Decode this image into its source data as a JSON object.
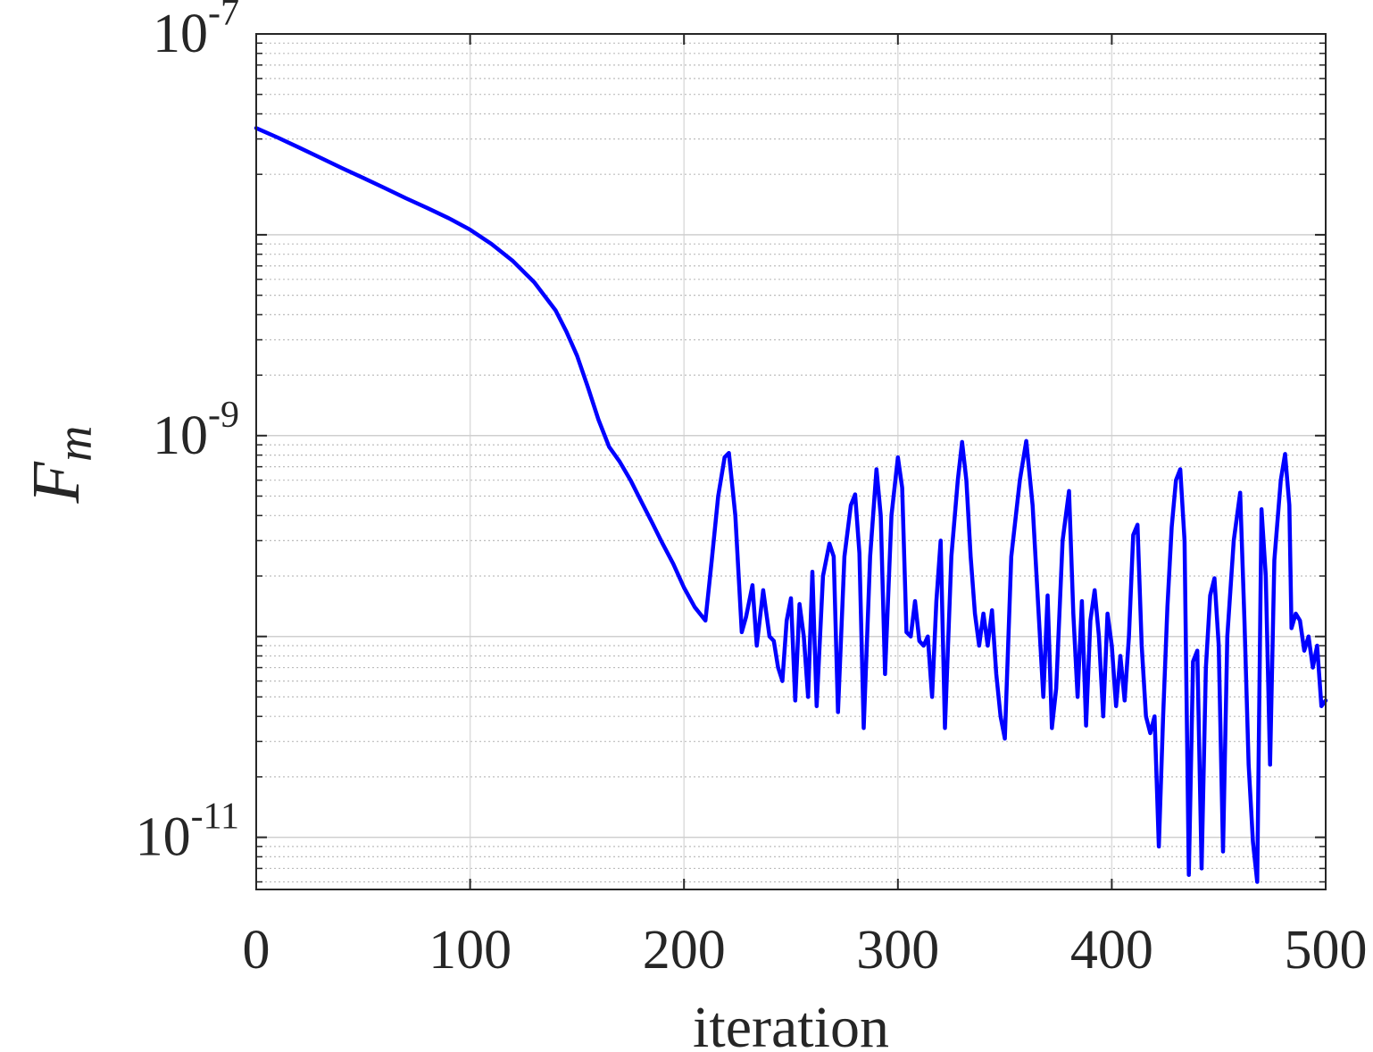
{
  "chart_data": {
    "type": "line",
    "title": "",
    "xlabel": "iteration",
    "ylabel": "F",
    "ylabel_subscript": "m",
    "xlim": [
      0,
      500
    ],
    "ylim": [
      5.5e-12,
      1e-07
    ],
    "yscale": "log",
    "grid": true,
    "x_ticks": [
      0,
      100,
      200,
      300,
      400,
      500
    ],
    "x_tick_labels": [
      "0",
      "100",
      "200",
      "300",
      "400",
      "500"
    ],
    "y_ticks": [
      1e-11,
      1e-09,
      1e-07
    ],
    "y_tick_labels": [
      {
        "base": "10",
        "exp": "-11"
      },
      {
        "base": "10",
        "exp": "-9"
      },
      {
        "base": "10",
        "exp": "-7"
      }
    ],
    "series": [
      {
        "color": "#0000ff",
        "points": [
          [
            0,
            3.4e-08
          ],
          [
            10,
            3.05e-08
          ],
          [
            20,
            2.72e-08
          ],
          [
            30,
            2.42e-08
          ],
          [
            40,
            2.15e-08
          ],
          [
            50,
            1.92e-08
          ],
          [
            60,
            1.71e-08
          ],
          [
            70,
            1.52e-08
          ],
          [
            80,
            1.36e-08
          ],
          [
            90,
            1.21e-08
          ],
          [
            100,
            1.06e-08
          ],
          [
            110,
            9e-09
          ],
          [
            120,
            7.4e-09
          ],
          [
            130,
            5.8e-09
          ],
          [
            140,
            4.2e-09
          ],
          [
            145,
            3.3e-09
          ],
          [
            150,
            2.5e-09
          ],
          [
            155,
            1.75e-09
          ],
          [
            160,
            1.2e-09
          ],
          [
            165,
            8.8e-10
          ],
          [
            170,
            7.4e-10
          ],
          [
            175,
            6e-10
          ],
          [
            180,
            4.7e-10
          ],
          [
            185,
            3.7e-10
          ],
          [
            190,
            2.9e-10
          ],
          [
            195,
            2.3e-10
          ],
          [
            200,
            1.75e-10
          ],
          [
            205,
            1.4e-10
          ],
          [
            210,
            1.2e-10
          ],
          [
            213,
            2.4e-10
          ],
          [
            216,
            5e-10
          ],
          [
            219,
            7.8e-10
          ],
          [
            221,
            8.2e-10
          ],
          [
            224,
            4e-10
          ],
          [
            227,
            1.05e-10
          ],
          [
            229,
            1.25e-10
          ],
          [
            232,
            1.8e-10
          ],
          [
            234,
            9e-11
          ],
          [
            237,
            1.7e-10
          ],
          [
            240,
            1e-10
          ],
          [
            242,
            9.5e-11
          ],
          [
            244,
            7e-11
          ],
          [
            246,
            6e-11
          ],
          [
            248,
            1.2e-10
          ],
          [
            250,
            1.55e-10
          ],
          [
            252,
            4.8e-11
          ],
          [
            254,
            1.45e-10
          ],
          [
            256,
            1e-10
          ],
          [
            258,
            5e-11
          ],
          [
            260,
            2.1e-10
          ],
          [
            262,
            4.5e-11
          ],
          [
            265,
            2e-10
          ],
          [
            268,
            2.9e-10
          ],
          [
            270,
            2.5e-10
          ],
          [
            272,
            4.2e-11
          ],
          [
            275,
            2.5e-10
          ],
          [
            278,
            4.5e-10
          ],
          [
            280,
            5.1e-10
          ],
          [
            282,
            2.6e-10
          ],
          [
            284,
            3.5e-11
          ],
          [
            287,
            2.5e-10
          ],
          [
            290,
            6.8e-10
          ],
          [
            292,
            4e-10
          ],
          [
            294,
            6.5e-11
          ],
          [
            297,
            4e-10
          ],
          [
            300,
            7.8e-10
          ],
          [
            302,
            5.5e-10
          ],
          [
            304,
            1.05e-10
          ],
          [
            306,
            1e-10
          ],
          [
            308,
            1.5e-10
          ],
          [
            310,
            9.5e-11
          ],
          [
            312,
            9e-11
          ],
          [
            314,
            1e-10
          ],
          [
            316,
            5e-11
          ],
          [
            318,
            1.5e-10
          ],
          [
            320,
            3e-10
          ],
          [
            322,
            3.5e-11
          ],
          [
            325,
            2.5e-10
          ],
          [
            328,
            6e-10
          ],
          [
            330,
            9.3e-10
          ],
          [
            332,
            6e-10
          ],
          [
            334,
            2.5e-10
          ],
          [
            336,
            1.3e-10
          ],
          [
            338,
            9e-11
          ],
          [
            340,
            1.3e-10
          ],
          [
            342,
            9e-11
          ],
          [
            344,
            1.35e-10
          ],
          [
            346,
            6.5e-11
          ],
          [
            348,
            4e-11
          ],
          [
            350,
            3.1e-11
          ],
          [
            353,
            2.5e-10
          ],
          [
            357,
            6e-10
          ],
          [
            360,
            9.4e-10
          ],
          [
            363,
            4.5e-10
          ],
          [
            366,
            1.2e-10
          ],
          [
            368,
            5e-11
          ],
          [
            370,
            1.6e-10
          ],
          [
            372,
            3.5e-11
          ],
          [
            374,
            5.5e-11
          ],
          [
            377,
            3e-10
          ],
          [
            380,
            5.3e-10
          ],
          [
            382,
            1.3e-10
          ],
          [
            384,
            5e-11
          ],
          [
            386,
            1.5e-10
          ],
          [
            388,
            3.6e-11
          ],
          [
            390,
            1.2e-10
          ],
          [
            392,
            1.7e-10
          ],
          [
            394,
            1e-10
          ],
          [
            396,
            4e-11
          ],
          [
            398,
            1.3e-10
          ],
          [
            400,
            9e-11
          ],
          [
            402,
            4.5e-11
          ],
          [
            404,
            8e-11
          ],
          [
            406,
            4.8e-11
          ],
          [
            408,
            1e-10
          ],
          [
            410,
            3.2e-10
          ],
          [
            412,
            3.6e-10
          ],
          [
            414,
            9e-11
          ],
          [
            416,
            4e-11
          ],
          [
            418,
            3.3e-11
          ],
          [
            420,
            4e-11
          ],
          [
            422,
            9e-12
          ],
          [
            424,
            4e-11
          ],
          [
            426,
            1.4e-10
          ],
          [
            428,
            3.5e-10
          ],
          [
            430,
            6e-10
          ],
          [
            432,
            6.8e-10
          ],
          [
            434,
            3e-10
          ],
          [
            436,
            6.5e-12
          ],
          [
            438,
            7.5e-11
          ],
          [
            440,
            8.5e-11
          ],
          [
            442,
            7e-12
          ],
          [
            444,
            7e-11
          ],
          [
            446,
            1.6e-10
          ],
          [
            448,
            1.95e-10
          ],
          [
            450,
            9e-11
          ],
          [
            452,
            8.5e-12
          ],
          [
            454,
            1e-10
          ],
          [
            457,
            3e-10
          ],
          [
            460,
            5.2e-10
          ],
          [
            462,
            1.2e-10
          ],
          [
            464,
            2.3e-11
          ],
          [
            466,
            9.5e-12
          ],
          [
            468,
            6e-12
          ],
          [
            470,
            4.3e-10
          ],
          [
            472,
            2e-10
          ],
          [
            474,
            2.3e-11
          ],
          [
            476,
            2.4e-10
          ],
          [
            479,
            6e-10
          ],
          [
            481,
            8.1e-10
          ],
          [
            483,
            4.5e-10
          ],
          [
            484,
            1.1e-10
          ],
          [
            486,
            1.3e-10
          ],
          [
            488,
            1.2e-10
          ],
          [
            490,
            8.5e-11
          ],
          [
            492,
            1e-10
          ],
          [
            494,
            7e-11
          ],
          [
            496,
            9e-11
          ],
          [
            498,
            4.5e-11
          ],
          [
            500,
            4.8e-11
          ]
        ]
      }
    ]
  }
}
